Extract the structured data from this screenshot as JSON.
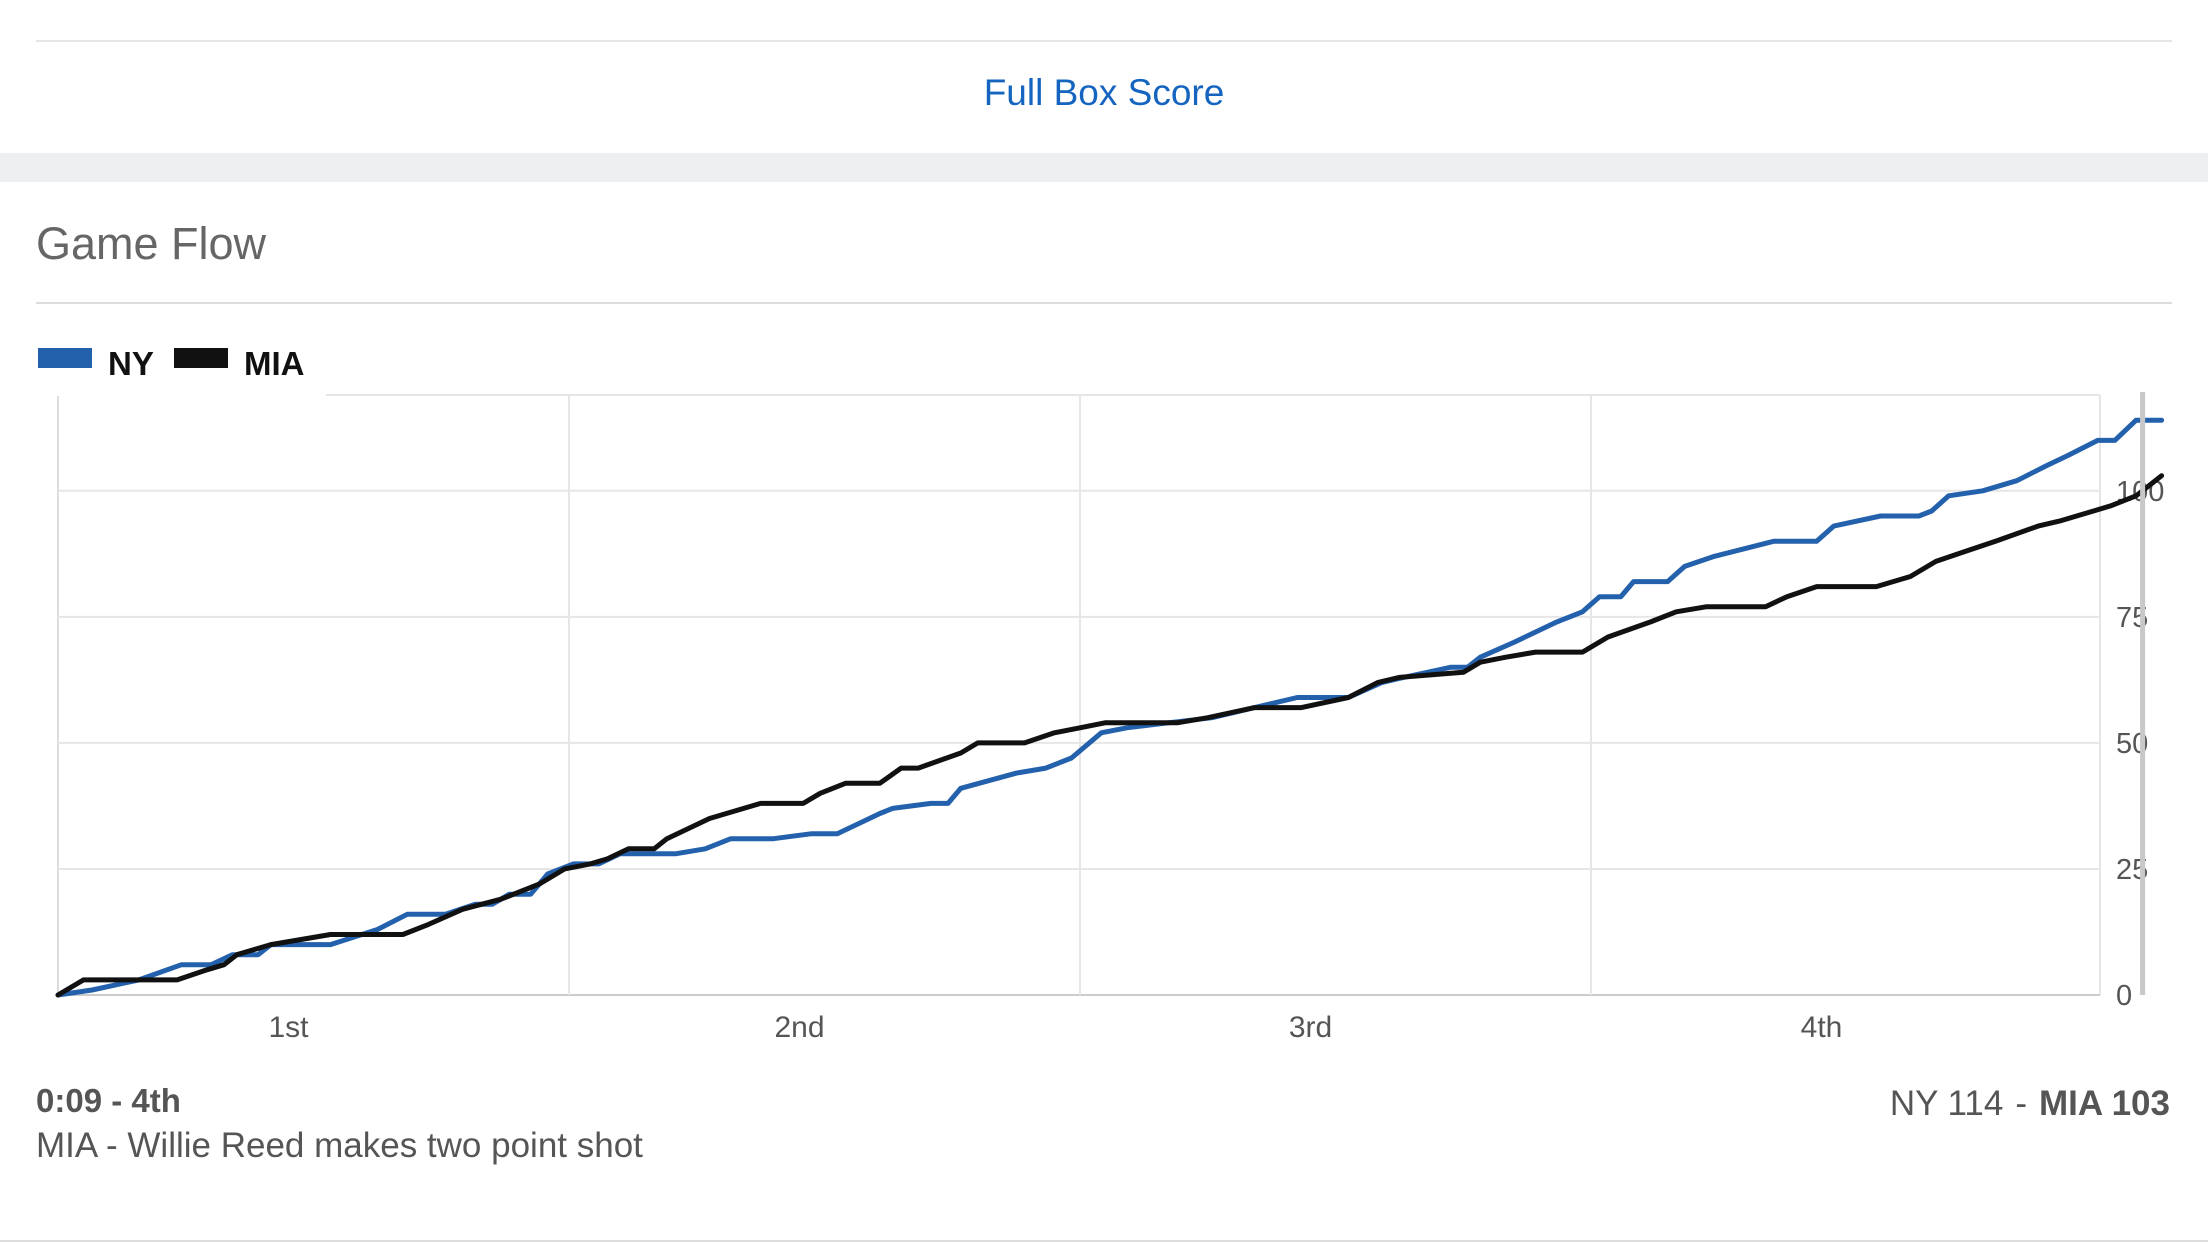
{
  "header": {
    "full_box_score_label": "Full Box Score"
  },
  "section": {
    "title": "Game Flow"
  },
  "colors": {
    "ny": "#2461ad",
    "mia": "#111111",
    "link": "#1565c0",
    "grid": "#e6e6e6"
  },
  "chart_data": {
    "type": "line",
    "title": "",
    "xlabel": "",
    "ylabel": "",
    "ylim": [
      0,
      119
    ],
    "xlim": [
      0,
      48
    ],
    "x_unit": "game minutes",
    "y_ticks": [
      0,
      25,
      50,
      75,
      100
    ],
    "quarters": [
      "1st",
      "2nd",
      "3rd",
      "4th"
    ],
    "grid": true,
    "legend": "top-left",
    "current_marker_x": 47.85,
    "series": [
      {
        "name": "NY",
        "color": "#2461ad",
        "points": [
          [
            0,
            0
          ],
          [
            0.8,
            1
          ],
          [
            1.9,
            3
          ],
          [
            2.9,
            6
          ],
          [
            3.6,
            6
          ],
          [
            4.1,
            8
          ],
          [
            4.7,
            8
          ],
          [
            5,
            10
          ],
          [
            6.4,
            10
          ],
          [
            7.5,
            13
          ],
          [
            8.2,
            16
          ],
          [
            9.1,
            16
          ],
          [
            9.8,
            18
          ],
          [
            10.2,
            18
          ],
          [
            10.6,
            20
          ],
          [
            11.1,
            20
          ],
          [
            11.5,
            24
          ],
          [
            12.1,
            26
          ],
          [
            12.7,
            26
          ],
          [
            13.2,
            28
          ],
          [
            14.5,
            28
          ],
          [
            15.2,
            29
          ],
          [
            15.8,
            31
          ],
          [
            16.8,
            31
          ],
          [
            17.7,
            32
          ],
          [
            18.3,
            32
          ],
          [
            18.8,
            34
          ],
          [
            19.3,
            36
          ],
          [
            19.6,
            37
          ],
          [
            20.5,
            38
          ],
          [
            20.9,
            38
          ],
          [
            21.2,
            41
          ],
          [
            22.5,
            44
          ],
          [
            23.2,
            45
          ],
          [
            23.8,
            47
          ],
          [
            24.5,
            52
          ],
          [
            25.1,
            53
          ],
          [
            26.1,
            54
          ],
          [
            27.1,
            55
          ],
          [
            28.1,
            57
          ],
          [
            29.1,
            59
          ],
          [
            30.3,
            59
          ],
          [
            31.1,
            62
          ],
          [
            31.6,
            63
          ],
          [
            32.7,
            65
          ],
          [
            33.1,
            65
          ],
          [
            33.4,
            67
          ],
          [
            34.2,
            70
          ],
          [
            35.2,
            74
          ],
          [
            35.8,
            76
          ],
          [
            36.2,
            79
          ],
          [
            36.7,
            79
          ],
          [
            37,
            82
          ],
          [
            37.8,
            82
          ],
          [
            38.2,
            85
          ],
          [
            38.9,
            87
          ],
          [
            40.3,
            90
          ],
          [
            41.3,
            90
          ],
          [
            41.7,
            93
          ],
          [
            42.8,
            95
          ],
          [
            43.7,
            95
          ],
          [
            44,
            96
          ],
          [
            44.4,
            99
          ],
          [
            45.2,
            100
          ],
          [
            46,
            102
          ],
          [
            46.7,
            105
          ],
          [
            47.2,
            107
          ],
          [
            47.9,
            110
          ],
          [
            48.3,
            110
          ],
          [
            48.8,
            114
          ],
          [
            49.4,
            114
          ]
        ]
      },
      {
        "name": "MIA",
        "color": "#111111",
        "points": [
          [
            0,
            0
          ],
          [
            0.6,
            3
          ],
          [
            2.8,
            3
          ],
          [
            3.5,
            5
          ],
          [
            3.9,
            6
          ],
          [
            4.2,
            8
          ],
          [
            4.6,
            9
          ],
          [
            5,
            10
          ],
          [
            6.4,
            12
          ],
          [
            8.1,
            12
          ],
          [
            8.7,
            14
          ],
          [
            9.5,
            17
          ],
          [
            10.4,
            19
          ],
          [
            11.3,
            22
          ],
          [
            11.9,
            25
          ],
          [
            12.5,
            26
          ],
          [
            12.9,
            27
          ],
          [
            13.4,
            29
          ],
          [
            14,
            29
          ],
          [
            14.3,
            31
          ],
          [
            14.8,
            33
          ],
          [
            15.3,
            35
          ],
          [
            16.5,
            38
          ],
          [
            17.5,
            38
          ],
          [
            17.9,
            40
          ],
          [
            18.5,
            42
          ],
          [
            19.3,
            42
          ],
          [
            19.8,
            45
          ],
          [
            20.2,
            45
          ],
          [
            21.2,
            48
          ],
          [
            21.6,
            50
          ],
          [
            22.7,
            50
          ],
          [
            23.4,
            52
          ],
          [
            24,
            53
          ],
          [
            24.6,
            54
          ],
          [
            25.2,
            54
          ],
          [
            26.3,
            54
          ],
          [
            27,
            55
          ],
          [
            28.1,
            57
          ],
          [
            29.2,
            57
          ],
          [
            30.3,
            59
          ],
          [
            31,
            62
          ],
          [
            31.5,
            63
          ],
          [
            33,
            64
          ],
          [
            33.4,
            66
          ],
          [
            34,
            67
          ],
          [
            34.7,
            68
          ],
          [
            35.8,
            68
          ],
          [
            36.4,
            71
          ],
          [
            37.4,
            74
          ],
          [
            38,
            76
          ],
          [
            38.7,
            77
          ],
          [
            40.1,
            77
          ],
          [
            40.6,
            79
          ],
          [
            41.3,
            81
          ],
          [
            42.7,
            81
          ],
          [
            43.5,
            83
          ],
          [
            44.1,
            86
          ],
          [
            44.8,
            88
          ],
          [
            45.5,
            90
          ],
          [
            46.5,
            93
          ],
          [
            47,
            94
          ],
          [
            47.8,
            96
          ],
          [
            48.2,
            97
          ],
          [
            48.8,
            99
          ],
          [
            49.1,
            101
          ],
          [
            49.4,
            103
          ]
        ]
      }
    ]
  },
  "last_play": {
    "time": "0:09 - 4th",
    "description": "MIA - Willie Reed makes two point shot"
  },
  "score": {
    "ny_text": "NY 114",
    "separator": "-",
    "mia_text": "MIA 103"
  }
}
